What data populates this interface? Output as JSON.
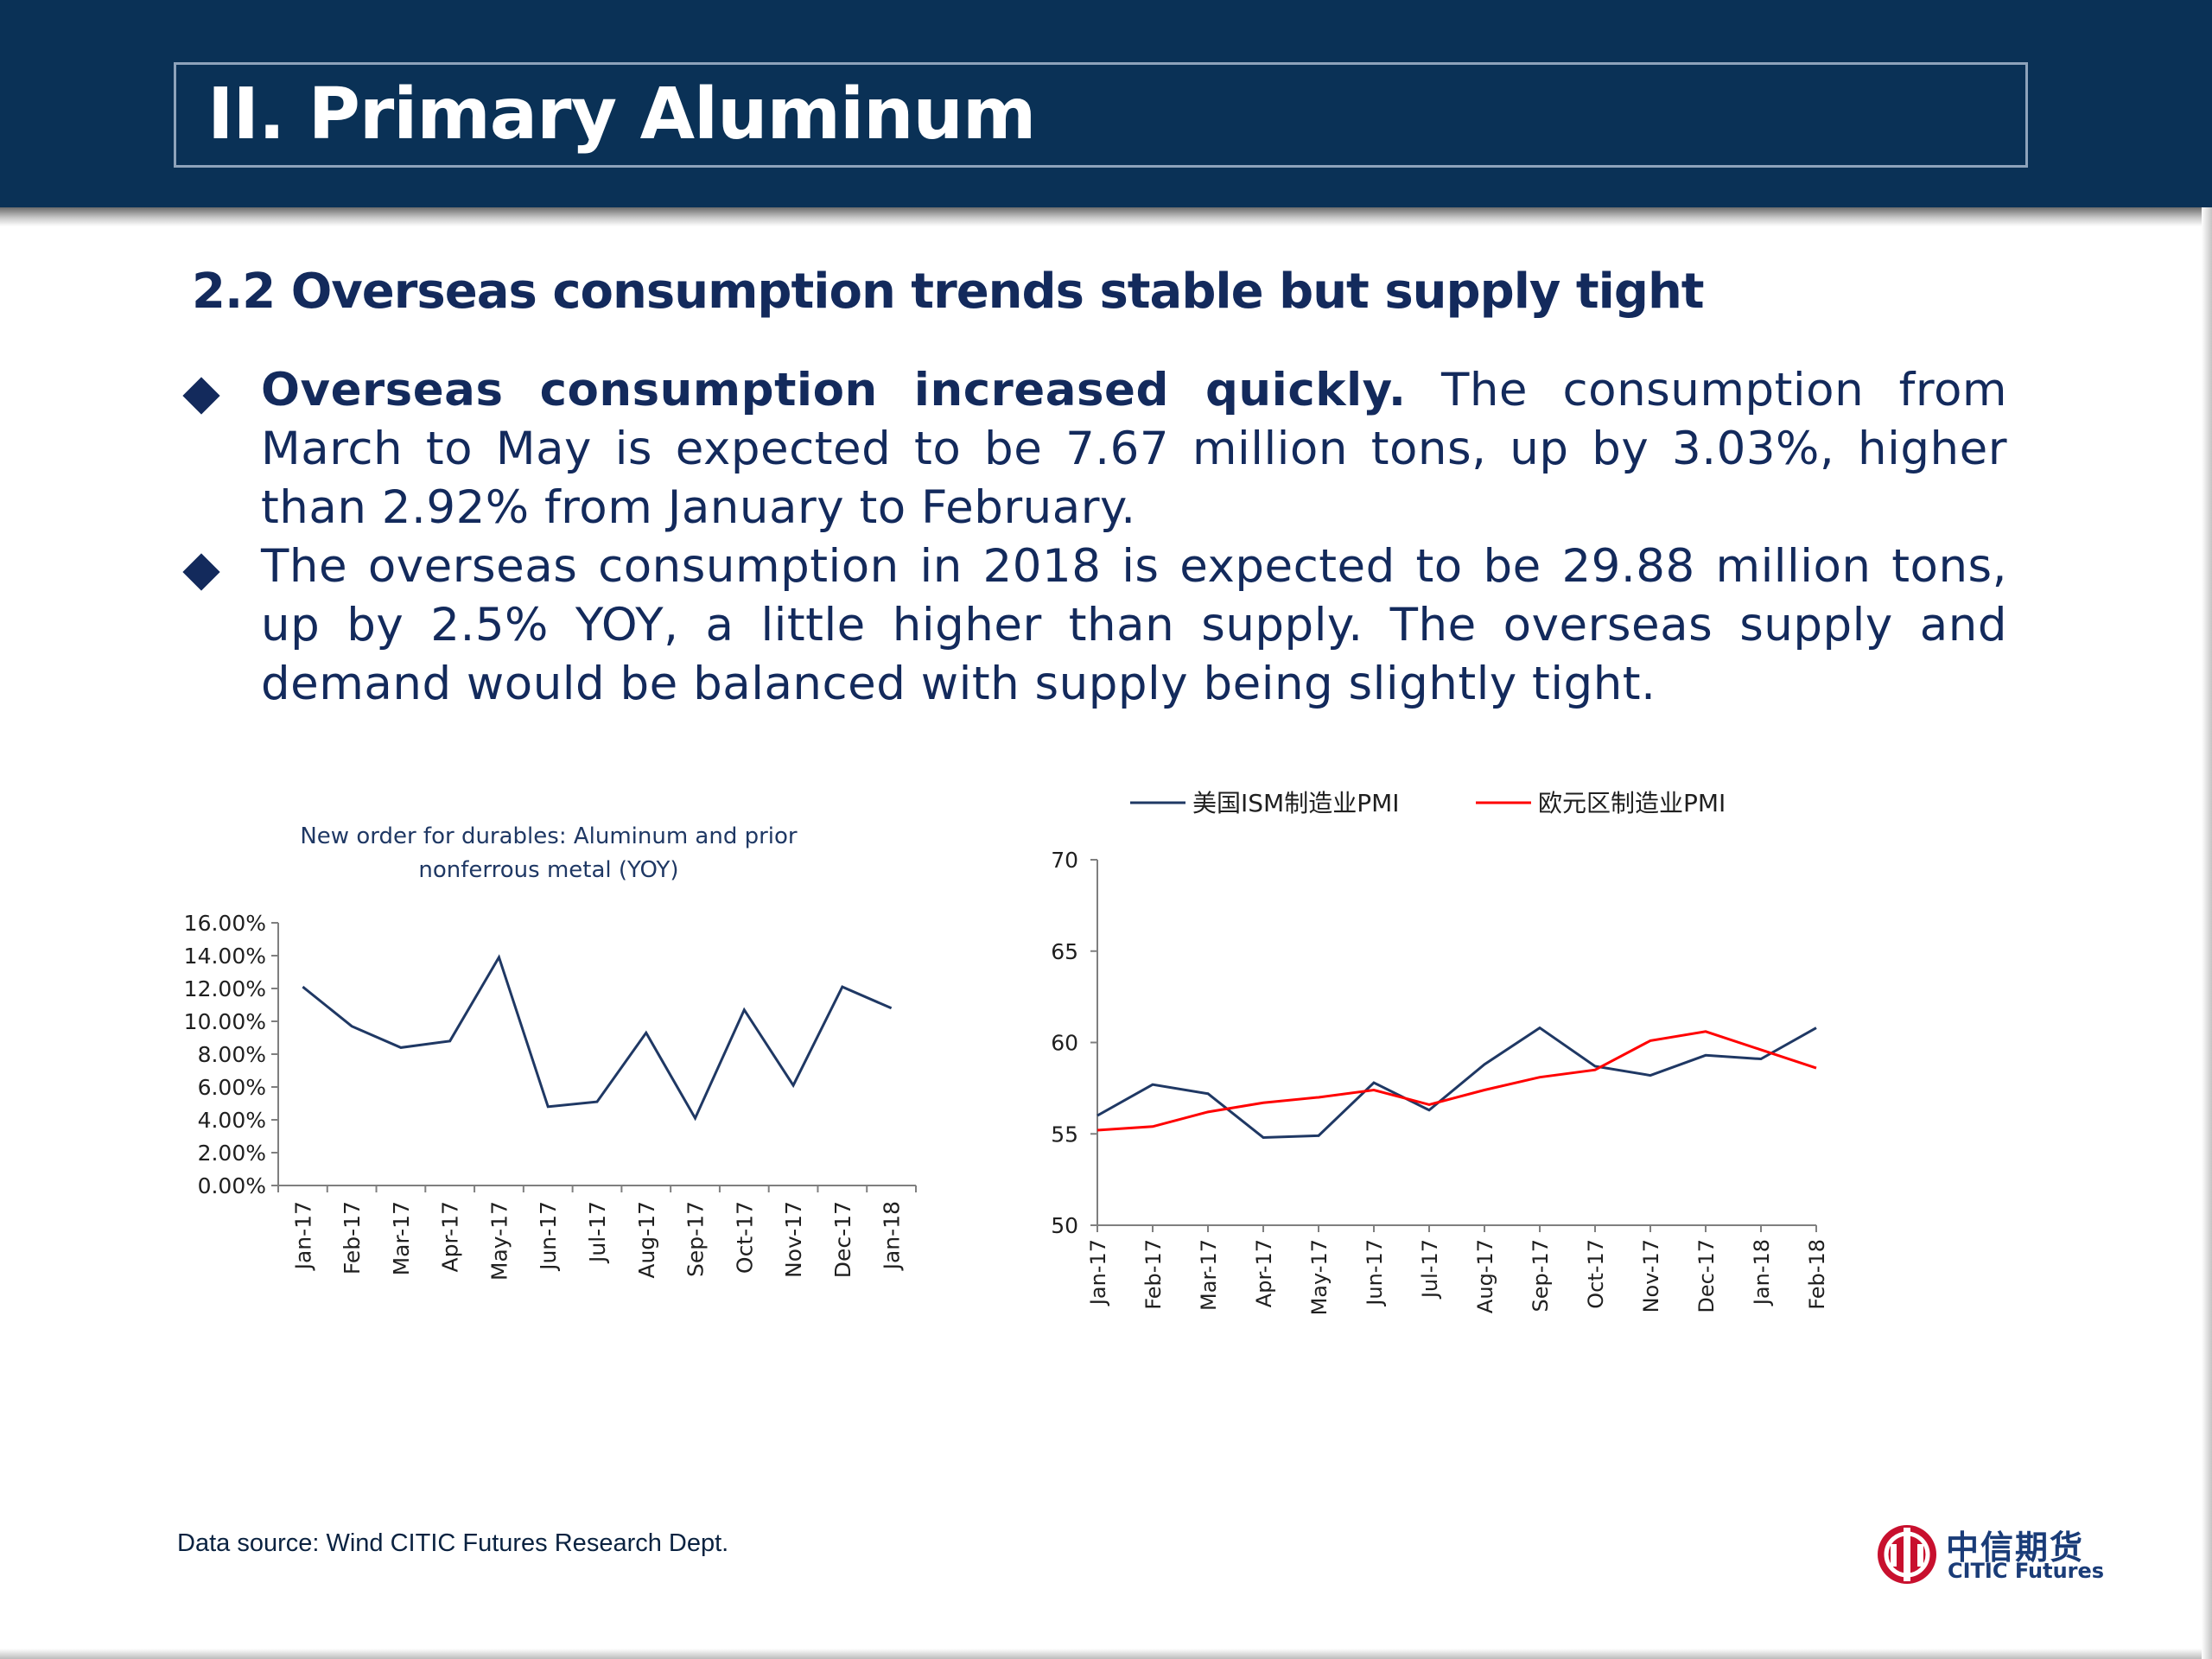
{
  "header": {
    "title": "II. Primary Aluminum"
  },
  "subtitle": "2.2 Overseas consumption  trends stable but supply tight",
  "bullets": [
    {
      "lead": "Overseas consumption increased quickly.",
      "text": " The consumption from March to May is expected to be 7.67 million tons, up by 3.03%, higher than 2.92% from January to February."
    },
    {
      "lead": "",
      "text": "The overseas consumption in 2018 is expected to be 29.88 million tons, up by 2.5% YOY, a little higher than supply. The overseas supply and demand would be balanced with supply being slightly tight."
    }
  ],
  "chart_data": [
    {
      "type": "line",
      "title": "New order for durables: Aluminum and prior nonferrous metal  (YOY)",
      "title_lines": [
        "New order for durables: Aluminum and prior",
        "nonferrous metal  (YOY)"
      ],
      "categories": [
        "Jan-17",
        "Feb-17",
        "Mar-17",
        "Apr-17",
        "May-17",
        "Jun-17",
        "Jul-17",
        "Aug-17",
        "Sep-17",
        "Oct-17",
        "Nov-17",
        "Dec-17",
        "Jan-18"
      ],
      "series": [
        {
          "values": [
            12.1,
            9.7,
            8.4,
            8.8,
            13.9,
            4.8,
            5.1,
            9.3,
            4.1,
            10.7,
            6.1,
            12.1,
            10.8
          ],
          "color": "#1f3864"
        }
      ],
      "ylim": [
        0,
        16
      ],
      "yticks": [
        "0.00%",
        "2.00%",
        "4.00%",
        "6.00%",
        "8.00%",
        "10.00%",
        "12.00%",
        "14.00%",
        "16.00%"
      ],
      "unit": "%",
      "grid": false
    },
    {
      "type": "line",
      "title": "",
      "categories": [
        "Jan-17",
        "Feb-17",
        "Mar-17",
        "Apr-17",
        "May-17",
        "Jun-17",
        "Jul-17",
        "Aug-17",
        "Sep-17",
        "Oct-17",
        "Nov-17",
        "Dec-17",
        "Jan-18",
        "Feb-18"
      ],
      "series": [
        {
          "name": "美国ISM制造业PMI",
          "values": [
            56.0,
            57.7,
            57.2,
            54.8,
            54.9,
            57.8,
            56.3,
            58.8,
            60.8,
            58.7,
            58.2,
            59.3,
            59.1,
            60.8
          ],
          "color": "#1f3864"
        },
        {
          "name": "欧元区制造业PMI",
          "values": [
            55.2,
            55.4,
            56.2,
            56.7,
            57.0,
            57.4,
            56.6,
            57.4,
            58.1,
            58.5,
            60.1,
            60.6,
            59.6,
            58.6
          ],
          "color": "#ff0000"
        }
      ],
      "ylim": [
        50,
        70
      ],
      "yticks": [
        "50",
        "55",
        "60",
        "65",
        "70"
      ],
      "legend": "top",
      "grid": false
    }
  ],
  "footer": {
    "source": "Data source: Wind   CITIC Futures Research Dept.",
    "logo_cn": "中信期货",
    "logo_en": "CITIC Futures"
  }
}
